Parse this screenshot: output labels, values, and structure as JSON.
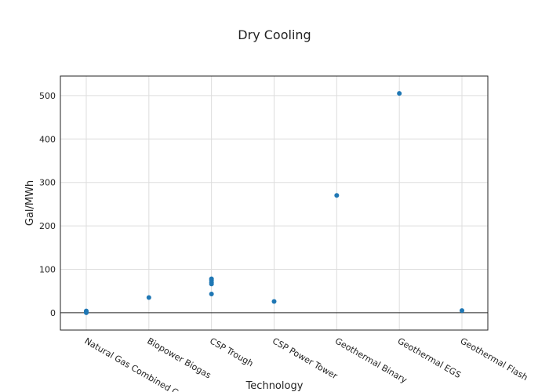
{
  "chart_data": {
    "type": "scatter",
    "title": "Dry Cooling",
    "xlabel": "Technology",
    "ylabel": "Gal/MWh",
    "categories": [
      "Natural Gas Combined Cycle",
      "Biopower Biogas",
      "CSP Trough",
      "CSP Power Tower",
      "Geothermal Binary",
      "Geothermal EGS",
      "Geothermal Flash"
    ],
    "points": [
      {
        "category": "Natural Gas Combined Cycle",
        "y": 4
      },
      {
        "category": "Natural Gas Combined Cycle",
        "y": 2
      },
      {
        "category": "Natural Gas Combined Cycle",
        "y": 0
      },
      {
        "category": "Biopower Biogas",
        "y": 35
      },
      {
        "category": "CSP Trough",
        "y": 78
      },
      {
        "category": "CSP Trough",
        "y": 75
      },
      {
        "category": "CSP Trough",
        "y": 70
      },
      {
        "category": "CSP Trough",
        "y": 66
      },
      {
        "category": "CSP Trough",
        "y": 43
      },
      {
        "category": "CSP Power Tower",
        "y": 26
      },
      {
        "category": "Geothermal Binary",
        "y": 270
      },
      {
        "category": "Geothermal EGS",
        "y": 505
      },
      {
        "category": "Geothermal Flash",
        "y": 5
      }
    ],
    "ylim": [
      -40,
      545
    ],
    "yticks": [
      0,
      100,
      200,
      300,
      400,
      500
    ],
    "grid": true,
    "legend": "none",
    "marker_color": "#1f77b4",
    "frame_color": "#222222",
    "grid_color": "#dddddd"
  }
}
